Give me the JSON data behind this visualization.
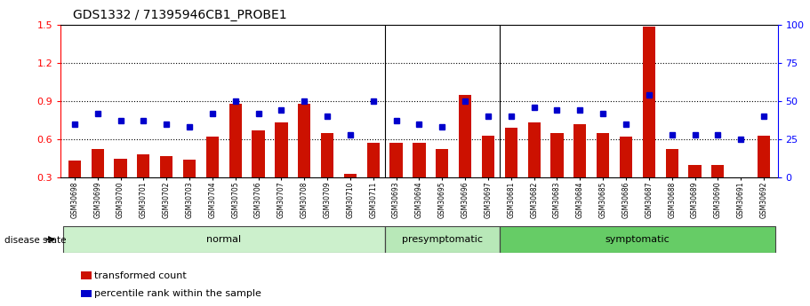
{
  "title": "GDS1332 / 71395946CB1_PROBE1",
  "samples": [
    "GSM30698",
    "GSM30699",
    "GSM30700",
    "GSM30701",
    "GSM30702",
    "GSM30703",
    "GSM30704",
    "GSM30705",
    "GSM30706",
    "GSM30707",
    "GSM30708",
    "GSM30709",
    "GSM30710",
    "GSM30711",
    "GSM30693",
    "GSM30694",
    "GSM30695",
    "GSM30696",
    "GSM30697",
    "GSM30681",
    "GSM30682",
    "GSM30683",
    "GSM30684",
    "GSM30685",
    "GSM30686",
    "GSM30687",
    "GSM30688",
    "GSM30689",
    "GSM30690",
    "GSM30691",
    "GSM30692"
  ],
  "bar_values": [
    0.43,
    0.52,
    0.45,
    0.48,
    0.47,
    0.44,
    0.62,
    0.88,
    0.67,
    0.73,
    0.88,
    0.65,
    0.33,
    0.57,
    0.57,
    0.57,
    0.52,
    0.95,
    0.63,
    0.69,
    0.73,
    0.65,
    0.72,
    0.65,
    0.62,
    1.48,
    0.52,
    0.4,
    0.4,
    0.28,
    0.63
  ],
  "dot_values": [
    35,
    42,
    37,
    37,
    35,
    33,
    42,
    50,
    42,
    44,
    50,
    40,
    28,
    50,
    37,
    35,
    33,
    50,
    40,
    40,
    46,
    44,
    44,
    42,
    35,
    54,
    28,
    28,
    28,
    25,
    40
  ],
  "groups": [
    {
      "label": "normal",
      "start": 0,
      "end": 13,
      "color": "#ccf0cc"
    },
    {
      "label": "presymptomatic",
      "start": 14,
      "end": 18,
      "color": "#b8e8b8"
    },
    {
      "label": "symptomatic",
      "start": 19,
      "end": 30,
      "color": "#66cc66"
    }
  ],
  "ylim_left": [
    0.3,
    1.5
  ],
  "yticks_left": [
    0.3,
    0.6,
    0.9,
    1.2,
    1.5
  ],
  "ylim_right": [
    0,
    100
  ],
  "yticks_right": [
    0,
    25,
    50,
    75,
    100
  ],
  "bar_color": "#cc1100",
  "dot_color": "#0000cc",
  "bar_width": 0.55,
  "title_fontsize": 10,
  "legend_bar_label": "transformed count",
  "legend_dot_label": "percentile rank within the sample",
  "disease_state_label": "disease state",
  "grid_color": "#000000",
  "grid_linestyle": "dotted"
}
